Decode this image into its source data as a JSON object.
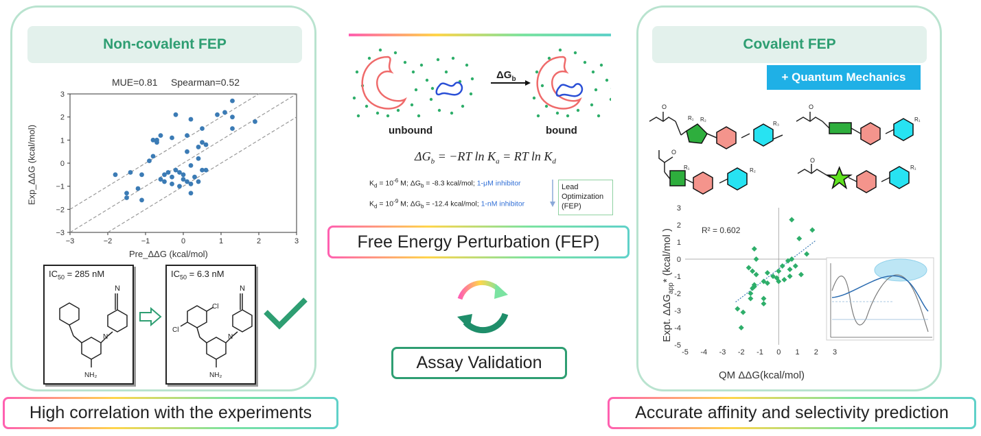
{
  "left_panel": {
    "title": "Non-covalent FEP",
    "stats": {
      "mue": "MUE=0.81",
      "spearman": "Spearman=0.52"
    },
    "xlabel": "Pre_ΔΔG (kcal/mol)",
    "ylabel": "Exp_ΔΔG (kcal/mol)",
    "ic50_before": "285 nM",
    "ic50_after": "6.3 nM",
    "ic50_label": "IC",
    "ic50_sub": "50",
    "mol_labels": {
      "n_top": "N",
      "nh": "H",
      "nh2": "NH₂",
      "cl": "Cl"
    },
    "caption": "High correlation with the experiments"
  },
  "center": {
    "unbound_label": "unbound",
    "bound_label": "bound",
    "arrow_label": "ΔG",
    "arrow_sub": "b",
    "equation": "ΔG_b = −RT ln K_a = RT ln K_d",
    "kd_lines": [
      {
        "text": "K_d = 10^-6 M; ΔG_b = -8.3 kcal/mol;",
        "inhibitor": "1-μM inhibitor"
      },
      {
        "text": "K_d = 10^-9 M; ΔG_b = -12.4 kcal/mol;",
        "inhibitor": "1-nM inhibitor"
      }
    ],
    "lead_box": "Lead Optimization (FEP)",
    "fep_caption": "Free Energy Perturbation (FEP)",
    "assay_caption": "Assay Validation"
  },
  "right_panel": {
    "title": "Covalent FEP",
    "qm_badge": "+ Quantum Mechanics",
    "r2": "R² = 0.602",
    "xlabel": "QM ΔΔG(kcal/mol)",
    "ylabel": "Expt. ΔΔG_app* (kcal/mol )",
    "substituents": [
      "R1",
      "R2",
      "R3"
    ],
    "caption": "Accurate affinity and selectivity prediction"
  },
  "chart_data": [
    {
      "type": "scatter",
      "title": "",
      "xlabel": "Pre_ΔΔG (kcal/mol)",
      "ylabel": "Exp_ΔΔG (kcal/mol)",
      "xlim": [
        -3,
        3
      ],
      "ylim": [
        -3,
        3
      ],
      "xticks": [
        -3,
        -2,
        -1,
        0,
        1,
        2,
        3
      ],
      "yticks": [
        -3,
        -2,
        -1,
        0,
        1,
        2,
        3
      ],
      "reference_lines": [
        "y = x + 1",
        "y = x",
        "y = x - 1"
      ],
      "color": "#3b7bb5",
      "points": [
        [
          -1.5,
          -1.3
        ],
        [
          -1.5,
          -1.5
        ],
        [
          -1.8,
          -0.5
        ],
        [
          -1.4,
          -0.4
        ],
        [
          -1.1,
          -0.5
        ],
        [
          -1.2,
          -1.1
        ],
        [
          -1.1,
          -1.6
        ],
        [
          -0.9,
          0.1
        ],
        [
          -0.8,
          0.3
        ],
        [
          -0.7,
          0.9
        ],
        [
          -0.7,
          1.0
        ],
        [
          -0.8,
          1.0
        ],
        [
          -0.6,
          1.2
        ],
        [
          -0.3,
          1.1
        ],
        [
          -0.2,
          2.1
        ],
        [
          -0.5,
          -0.5
        ],
        [
          -0.6,
          -0.7
        ],
        [
          -0.4,
          -0.4
        ],
        [
          -0.3,
          -0.6
        ],
        [
          -0.5,
          -0.8
        ],
        [
          -0.3,
          -0.9
        ],
        [
          -0.2,
          -0.3
        ],
        [
          -0.1,
          -0.4
        ],
        [
          0.0,
          -0.7
        ],
        [
          0.0,
          -0.5
        ],
        [
          -0.1,
          -1.0
        ],
        [
          0.1,
          0.5
        ],
        [
          0.1,
          -0.8
        ],
        [
          0.2,
          -0.9
        ],
        [
          0.2,
          -1.3
        ],
        [
          0.2,
          -0.1
        ],
        [
          0.3,
          -0.6
        ],
        [
          0.4,
          0.7
        ],
        [
          0.5,
          0.9
        ],
        [
          0.4,
          0.2
        ],
        [
          0.5,
          -0.3
        ],
        [
          0.6,
          0.8
        ],
        [
          0.2,
          1.9
        ],
        [
          0.1,
          1.2
        ],
        [
          0.5,
          1.5
        ],
        [
          0.6,
          -0.3
        ],
        [
          0.9,
          2.1
        ],
        [
          1.1,
          2.2
        ],
        [
          1.3,
          2.0
        ],
        [
          1.3,
          2.7
        ],
        [
          1.3,
          1.5
        ],
        [
          1.9,
          1.8
        ],
        [
          0.4,
          -0.8
        ]
      ]
    },
    {
      "type": "scatter",
      "title": "",
      "xlabel": "QM ΔΔG(kcal/mol)",
      "ylabel": "Expt. ΔΔG_app* (kcal/mol )",
      "xlim": [
        -5,
        3
      ],
      "ylim": [
        -5,
        3
      ],
      "xticks": [
        -5,
        -4,
        -3,
        -2,
        -1,
        0,
        1,
        2,
        3
      ],
      "yticks": [
        -5,
        -4,
        -3,
        -2,
        -1,
        0,
        1,
        2,
        3
      ],
      "trendline": "dotted linear fit",
      "r2": 0.602,
      "color": "#2eae6a",
      "points": [
        [
          -2.0,
          -4.0
        ],
        [
          -1.9,
          -3.1
        ],
        [
          -2.2,
          -2.9
        ],
        [
          -1.5,
          -2.0
        ],
        [
          -1.5,
          -2.3
        ],
        [
          -1.3,
          -1.6
        ],
        [
          -1.4,
          -1.7
        ],
        [
          -1.3,
          -1.5
        ],
        [
          -1.4,
          -0.7
        ],
        [
          -1.2,
          0.0
        ],
        [
          -1.6,
          -0.5
        ],
        [
          -1.2,
          -0.9
        ],
        [
          -0.6,
          -0.8
        ],
        [
          -0.8,
          -1.3
        ],
        [
          -0.6,
          -1.4
        ],
        [
          -0.3,
          -1.0
        ],
        [
          -0.1,
          -1.1
        ],
        [
          0.0,
          -1.3
        ],
        [
          0.3,
          -1.2
        ],
        [
          0.2,
          -0.4
        ],
        [
          0.5,
          -0.1
        ],
        [
          0.7,
          0.0
        ],
        [
          0.9,
          -0.4
        ],
        [
          0.6,
          -1.0
        ],
        [
          0.7,
          2.3
        ],
        [
          1.1,
          1.2
        ],
        [
          1.5,
          0.3
        ],
        [
          1.8,
          1.7
        ],
        [
          -1.3,
          0.6
        ],
        [
          -0.8,
          -2.3
        ],
        [
          -0.8,
          -2.6
        ],
        [
          0.0,
          -0.7
        ],
        [
          1.2,
          -0.9
        ],
        [
          0.6,
          -0.6
        ]
      ]
    }
  ]
}
